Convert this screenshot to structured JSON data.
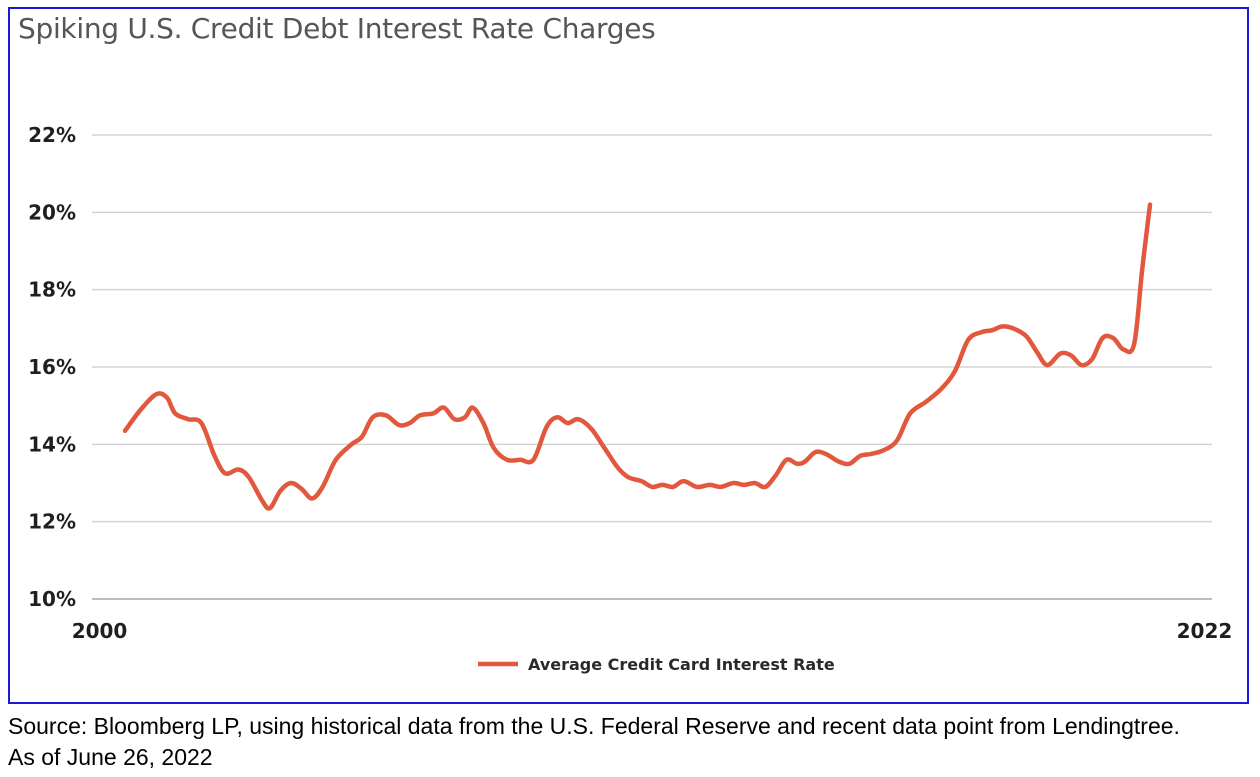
{
  "title": "Spiking U.S. Credit Debt Interest Rate Charges",
  "source_line": "Source: Bloomberg LP, using historical data from the U.S. Federal Reserve and recent data point from Lendingtree.",
  "as_of_line": "As of June 26, 2022",
  "colors": {
    "line": "#e2583e",
    "grid": "#d4d4d4",
    "frame": "#1a1ad6",
    "title": "#55565a"
  },
  "chart_data": {
    "type": "line",
    "title": "Spiking U.S. Credit Debt Interest Rate Charges",
    "xlabel": "",
    "ylabel": "",
    "x_tick_labels": [
      {
        "label": "2000",
        "x": 2000
      },
      {
        "label": "2022",
        "x": 2022
      }
    ],
    "xlim": [
      1999.85,
      2022.15
    ],
    "ylim": [
      10,
      22
    ],
    "y_ticks": [
      10,
      12,
      14,
      16,
      18,
      20,
      22
    ],
    "y_tick_labels": [
      "10%",
      "12%",
      "14%",
      "16%",
      "18%",
      "20%",
      "22%"
    ],
    "grid": true,
    "legend_position": "bottom-center",
    "series": [
      {
        "name": "Average Credit Card Interest Rate",
        "color": "#e2583e",
        "points": [
          [
            1999.8,
            14.35
          ],
          [
            2000.1,
            14.9
          ],
          [
            2000.4,
            15.3
          ],
          [
            2000.6,
            15.2
          ],
          [
            2000.75,
            14.8
          ],
          [
            2001.0,
            14.65
          ],
          [
            2001.25,
            14.55
          ],
          [
            2001.5,
            13.7
          ],
          [
            2001.7,
            13.25
          ],
          [
            2001.95,
            13.35
          ],
          [
            2002.15,
            13.15
          ],
          [
            2002.4,
            12.55
          ],
          [
            2002.55,
            12.35
          ],
          [
            2002.75,
            12.8
          ],
          [
            2002.95,
            13.0
          ],
          [
            2003.15,
            12.85
          ],
          [
            2003.35,
            12.6
          ],
          [
            2003.55,
            12.9
          ],
          [
            2003.8,
            13.6
          ],
          [
            2004.1,
            14.0
          ],
          [
            2004.3,
            14.2
          ],
          [
            2004.5,
            14.7
          ],
          [
            2004.75,
            14.75
          ],
          [
            2005.0,
            14.5
          ],
          [
            2005.2,
            14.55
          ],
          [
            2005.4,
            14.75
          ],
          [
            2005.65,
            14.8
          ],
          [
            2005.85,
            14.95
          ],
          [
            2006.05,
            14.65
          ],
          [
            2006.25,
            14.7
          ],
          [
            2006.4,
            14.95
          ],
          [
            2006.6,
            14.55
          ],
          [
            2006.8,
            13.9
          ],
          [
            2007.05,
            13.6
          ],
          [
            2007.3,
            13.6
          ],
          [
            2007.55,
            13.6
          ],
          [
            2007.8,
            14.45
          ],
          [
            2008.0,
            14.7
          ],
          [
            2008.2,
            14.55
          ],
          [
            2008.4,
            14.65
          ],
          [
            2008.65,
            14.4
          ],
          [
            2008.9,
            13.9
          ],
          [
            2009.15,
            13.4
          ],
          [
            2009.35,
            13.15
          ],
          [
            2009.6,
            13.05
          ],
          [
            2009.8,
            12.9
          ],
          [
            2010.0,
            12.95
          ],
          [
            2010.2,
            12.9
          ],
          [
            2010.4,
            13.05
          ],
          [
            2010.65,
            12.9
          ],
          [
            2010.9,
            12.95
          ],
          [
            2011.1,
            12.9
          ],
          [
            2011.35,
            13.0
          ],
          [
            2011.55,
            12.95
          ],
          [
            2011.75,
            13.0
          ],
          [
            2011.95,
            12.9
          ],
          [
            2012.15,
            13.2
          ],
          [
            2012.35,
            13.6
          ],
          [
            2012.55,
            13.5
          ],
          [
            2012.7,
            13.55
          ],
          [
            2012.9,
            13.8
          ],
          [
            2013.1,
            13.75
          ],
          [
            2013.35,
            13.55
          ],
          [
            2013.55,
            13.5
          ],
          [
            2013.75,
            13.7
          ],
          [
            2013.95,
            13.75
          ],
          [
            2014.2,
            13.85
          ],
          [
            2014.45,
            14.1
          ],
          [
            2014.7,
            14.8
          ],
          [
            2015.0,
            15.1
          ],
          [
            2015.3,
            15.45
          ],
          [
            2015.55,
            15.9
          ],
          [
            2015.8,
            16.7
          ],
          [
            2016.05,
            16.9
          ],
          [
            2016.25,
            16.95
          ],
          [
            2016.45,
            17.05
          ],
          [
            2016.65,
            17.0
          ],
          [
            2016.9,
            16.8
          ],
          [
            2017.1,
            16.4
          ],
          [
            2017.3,
            16.05
          ],
          [
            2017.55,
            16.35
          ],
          [
            2017.75,
            16.3
          ],
          [
            2017.95,
            16.05
          ],
          [
            2018.15,
            16.2
          ],
          [
            2018.35,
            16.75
          ],
          [
            2018.55,
            16.75
          ],
          [
            2018.75,
            16.45
          ],
          [
            2018.95,
            16.6
          ],
          [
            2019.1,
            18.5
          ],
          [
            2019.25,
            20.2
          ]
        ]
      }
    ]
  }
}
